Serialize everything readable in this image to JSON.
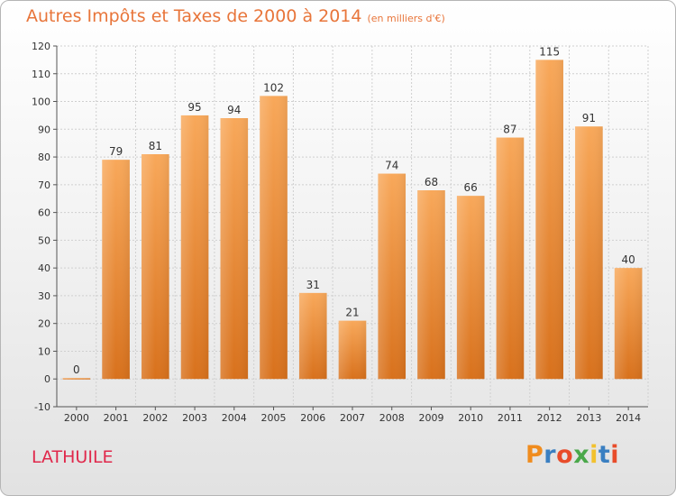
{
  "header": {
    "title": "Autres Impôts et Taxes de 2000 à 2014",
    "unit": "(en milliers d'€)"
  },
  "footer": {
    "commune": "LATHUILE",
    "brand": "Proxiti"
  },
  "colors": {
    "bar_top": "#f8a85a",
    "bar_bottom": "#d8711c",
    "title": "#e8753a",
    "commune": "#e0284b",
    "grid": "#cfcfcf"
  },
  "chart_data": {
    "type": "bar",
    "title": "Autres Impôts et Taxes de 2000 à 2014",
    "subtitle": "(en milliers d'€)",
    "categories": [
      "2000",
      "2001",
      "2002",
      "2003",
      "2004",
      "2005",
      "2006",
      "2007",
      "2008",
      "2009",
      "2010",
      "2011",
      "2012",
      "2013",
      "2014"
    ],
    "values": [
      0,
      79,
      81,
      95,
      94,
      102,
      31,
      21,
      74,
      68,
      66,
      87,
      115,
      91,
      40
    ],
    "ylim": [
      -10,
      120
    ],
    "yticks": [
      -10,
      0,
      10,
      20,
      30,
      40,
      50,
      60,
      70,
      80,
      90,
      100,
      110,
      120
    ],
    "grid": true,
    "legend": "none"
  }
}
